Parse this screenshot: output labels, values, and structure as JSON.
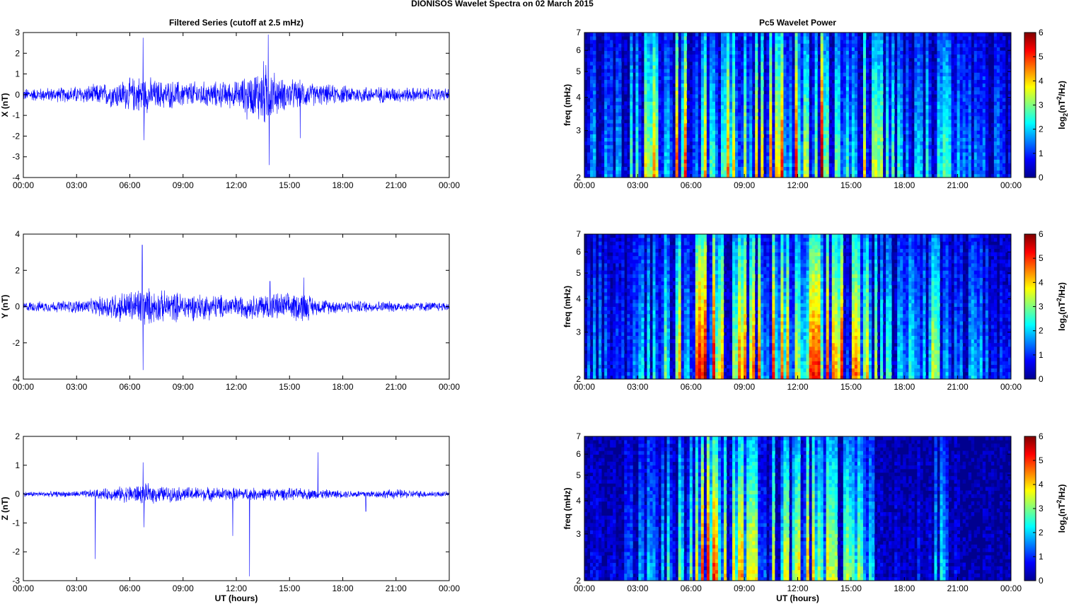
{
  "page_title": "DIONISOS Wavelet Spectra on 02 March     2015",
  "chart_data": [
    {
      "type": "line",
      "panel": "x-filtered-series",
      "title": "Filtered Series (cutoff at 2.5 mHz)",
      "xlabel": "",
      "ylabel": "X (nT)",
      "xlim": [
        "00:00",
        "24:00"
      ],
      "ylim": [
        -4,
        3
      ],
      "yticks": [
        "-4",
        "-3",
        "-2",
        "-1",
        "0",
        "1",
        "2",
        "3"
      ],
      "xticks": [
        "00:00",
        "03:00",
        "06:00",
        "09:00",
        "12:00",
        "15:00",
        "18:00",
        "21:00",
        "00:00"
      ],
      "color": "#0000ff",
      "envelope_hours": [
        0,
        2,
        4,
        5,
        6,
        6.7,
        7.5,
        9,
        10.5,
        12,
        13,
        13.5,
        14,
        14.5,
        15.5,
        16.5,
        18,
        20,
        22,
        24
      ],
      "envelope_amplitude": [
        0.35,
        0.4,
        0.55,
        0.7,
        0.9,
        1.1,
        0.8,
        0.75,
        0.7,
        0.75,
        1.2,
        1.9,
        1.4,
        0.9,
        0.8,
        0.6,
        0.5,
        0.45,
        0.4,
        0.35
      ],
      "spikes": [
        {
          "t": 6.75,
          "v": 2.75
        },
        {
          "t": 6.8,
          "v": -2.2
        },
        {
          "t": 13.8,
          "v": 2.9
        },
        {
          "t": 13.85,
          "v": -3.4
        },
        {
          "t": 12.6,
          "v": -1.2
        },
        {
          "t": 15.6,
          "v": -2.1
        }
      ]
    },
    {
      "type": "line",
      "panel": "y-filtered-series",
      "title": "",
      "xlabel": "",
      "ylabel": "Y (nT)",
      "xlim": [
        "00:00",
        "24:00"
      ],
      "ylim": [
        -4,
        4
      ],
      "yticks": [
        "-4",
        "-2",
        "0",
        "2",
        "4"
      ],
      "xticks": [
        "00:00",
        "03:00",
        "06:00",
        "09:00",
        "12:00",
        "15:00",
        "18:00",
        "21:00",
        "00:00"
      ],
      "color": "#0000ff",
      "envelope_hours": [
        0,
        2,
        4,
        5,
        6,
        6.7,
        7.5,
        9,
        10.5,
        12,
        13,
        14,
        15,
        15.8,
        16.5,
        18,
        20,
        22,
        24
      ],
      "envelope_amplitude": [
        0.3,
        0.35,
        0.5,
        0.9,
        1.0,
        1.3,
        1.0,
        0.9,
        0.8,
        0.7,
        0.75,
        0.9,
        0.8,
        1.0,
        0.5,
        0.4,
        0.35,
        0.3,
        0.3
      ],
      "spikes": [
        {
          "t": 6.7,
          "v": 3.4
        },
        {
          "t": 6.75,
          "v": -3.5
        },
        {
          "t": 13.9,
          "v": 1.4
        },
        {
          "t": 15.8,
          "v": 1.6
        }
      ]
    },
    {
      "type": "line",
      "panel": "z-filtered-series",
      "title": "",
      "xlabel": "UT (hours)",
      "ylabel": "Z (nT)",
      "xlim": [
        "00:00",
        "24:00"
      ],
      "ylim": [
        -3,
        2
      ],
      "yticks": [
        "-3",
        "-2",
        "-1",
        "0",
        "1",
        "2"
      ],
      "xticks": [
        "00:00",
        "03:00",
        "06:00",
        "09:00",
        "12:00",
        "15:00",
        "18:00",
        "21:00",
        "00:00"
      ],
      "color": "#0000ff",
      "envelope_hours": [
        0,
        3,
        5,
        6,
        7,
        8,
        10,
        12,
        14,
        16,
        18,
        20,
        21,
        22,
        24
      ],
      "envelope_amplitude": [
        0.1,
        0.12,
        0.25,
        0.35,
        0.4,
        0.3,
        0.28,
        0.25,
        0.25,
        0.22,
        0.15,
        0.15,
        0.2,
        0.15,
        0.1
      ],
      "spikes": [
        {
          "t": 4.05,
          "v": -2.25
        },
        {
          "t": 6.75,
          "v": 1.1
        },
        {
          "t": 6.8,
          "v": -1.15
        },
        {
          "t": 11.8,
          "v": -1.45
        },
        {
          "t": 12.75,
          "v": -2.85
        },
        {
          "t": 16.6,
          "v": 1.45
        },
        {
          "t": 19.3,
          "v": -0.6
        }
      ]
    },
    {
      "type": "heatmap",
      "panel": "x-wavelet-power",
      "title": "Pc5 Wavelet Power",
      "xlabel": "",
      "ylabel": "freq (mHz)",
      "y_scale": "log",
      "ylim": [
        2,
        7
      ],
      "yticks": [
        "2",
        "3",
        "4",
        "5",
        "6",
        "7"
      ],
      "xlim": [
        "00:00",
        "24:00"
      ],
      "xticks": [
        "00:00",
        "03:00",
        "06:00",
        "09:00",
        "12:00",
        "15:00",
        "18:00",
        "21:00",
        "00:00"
      ],
      "colorbar_label": "log2(nT^2/Hz)",
      "colorbar_range": [
        0,
        6
      ],
      "colorbar_ticks": [
        "0",
        "1",
        "2",
        "3",
        "4",
        "5",
        "6"
      ],
      "activity_hours": [
        0,
        1,
        2,
        3,
        4,
        5,
        6,
        7,
        8,
        9,
        10,
        11,
        12,
        13,
        14,
        15,
        16,
        17,
        18,
        19,
        20,
        21,
        22,
        23,
        24
      ],
      "activity_level": [
        2.5,
        2.0,
        1.8,
        3.5,
        4.5,
        4.6,
        5.2,
        5.0,
        4.6,
        4.8,
        4.5,
        5.0,
        5.4,
        6.0,
        5.8,
        5.4,
        4.2,
        3.0,
        2.4,
        2.2,
        3.2,
        2.0,
        1.6,
        1.6,
        1.4
      ]
    },
    {
      "type": "heatmap",
      "panel": "y-wavelet-power",
      "title": "",
      "xlabel": "",
      "ylabel": "freq (mHz)",
      "y_scale": "log",
      "ylim": [
        2,
        7
      ],
      "yticks": [
        "2",
        "3",
        "4",
        "5",
        "6",
        "7"
      ],
      "xlim": [
        "00:00",
        "24:00"
      ],
      "xticks": [
        "00:00",
        "03:00",
        "06:00",
        "09:00",
        "12:00",
        "15:00",
        "18:00",
        "21:00",
        "00:00"
      ],
      "colorbar_label": "log2(nT^2/Hz)",
      "colorbar_range": [
        0,
        6
      ],
      "colorbar_ticks": [
        "0",
        "1",
        "2",
        "3",
        "4",
        "5",
        "6"
      ],
      "activity_hours": [
        0,
        1,
        2,
        3,
        4,
        5,
        6,
        7,
        8,
        9,
        10,
        11,
        12,
        13,
        14,
        15,
        16,
        17,
        18,
        19,
        20,
        21,
        22,
        23,
        24
      ],
      "activity_level": [
        1.8,
        1.8,
        1.5,
        2.2,
        2.5,
        3.8,
        5.5,
        5.6,
        5.0,
        5.6,
        5.0,
        4.8,
        5.4,
        5.2,
        4.8,
        5.5,
        4.0,
        2.6,
        2.4,
        3.2,
        3.8,
        1.4,
        2.4,
        1.2,
        1.0
      ]
    },
    {
      "type": "heatmap",
      "panel": "z-wavelet-power",
      "title": "",
      "xlabel": "UT (hours)",
      "ylabel": "freq (mHz)",
      "y_scale": "log",
      "ylim": [
        2,
        7
      ],
      "yticks": [
        "2",
        "3",
        "4",
        "5",
        "6",
        "7"
      ],
      "xlim": [
        "00:00",
        "24:00"
      ],
      "xticks": [
        "00:00",
        "03:00",
        "06:00",
        "09:00",
        "12:00",
        "15:00",
        "18:00",
        "21:00",
        "00:00"
      ],
      "colorbar_label": "log2(nT^2/Hz)",
      "colorbar_range": [
        0,
        6
      ],
      "colorbar_ticks": [
        "0",
        "1",
        "2",
        "3",
        "4",
        "5",
        "6"
      ],
      "activity_hours": [
        0,
        1,
        2,
        3,
        4,
        5,
        6,
        7,
        8,
        9,
        10,
        11,
        12,
        13,
        14,
        15,
        16,
        17,
        18,
        19,
        20,
        21,
        22,
        23,
        24
      ],
      "activity_level": [
        0.6,
        0.8,
        1.0,
        1.6,
        2.6,
        3.0,
        4.6,
        5.4,
        3.8,
        4.4,
        3.4,
        3.6,
        3.8,
        4.6,
        3.4,
        4.0,
        2.4,
        0.8,
        0.6,
        1.0,
        2.4,
        0.6,
        0.4,
        0.4,
        0.4
      ]
    }
  ]
}
